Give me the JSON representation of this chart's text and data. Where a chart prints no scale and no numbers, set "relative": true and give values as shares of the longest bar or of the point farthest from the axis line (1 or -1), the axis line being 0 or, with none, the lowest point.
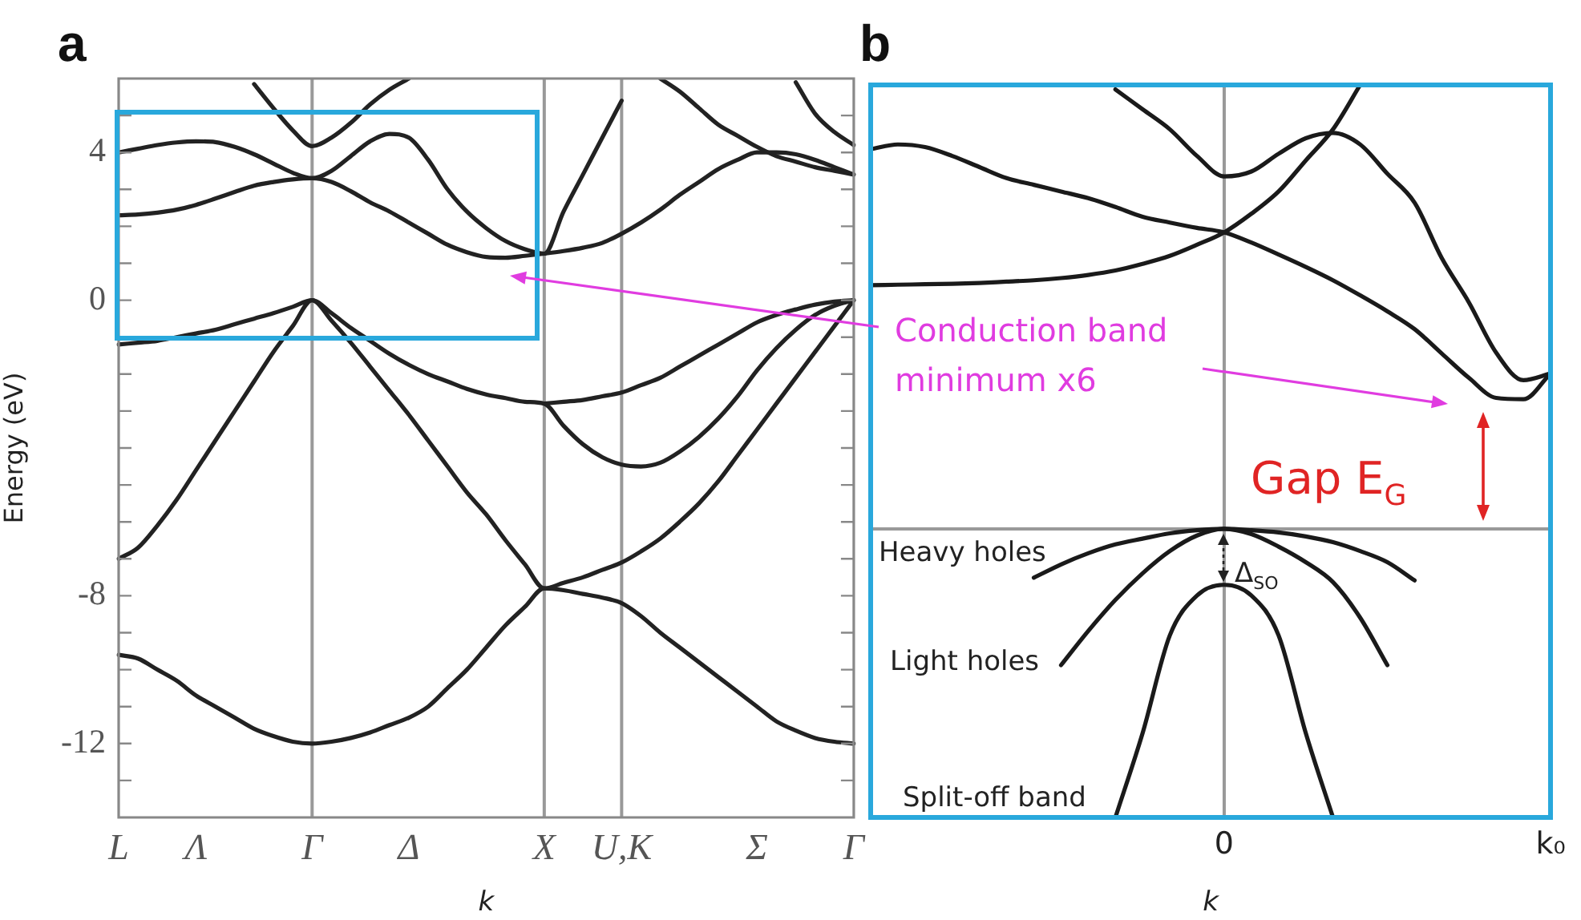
{
  "chart_data": [
    {
      "type": "line",
      "title": "a",
      "xlabel": "k",
      "ylabel": "Energy (eV)",
      "ylim": [
        -14,
        6
      ],
      "categories": [
        "L",
        null,
        null,
        null,
        "Λ",
        null,
        null,
        null,
        null,
        null,
        "Γ",
        null,
        null,
        null,
        null,
        "Δ",
        null,
        null,
        null,
        null,
        null,
        null,
        "X",
        null,
        null,
        null,
        "U,K",
        null,
        null,
        null,
        null,
        null,
        null,
        "Σ",
        null,
        null,
        null,
        null,
        "Γ"
      ],
      "yticks": [
        {
          "value": -13,
          "label": null
        },
        {
          "value": -12,
          "label": "-12"
        },
        {
          "value": -11,
          "label": null
        },
        {
          "value": -10,
          "label": null
        },
        {
          "value": -9,
          "label": null
        },
        {
          "value": -8,
          "label": "-8"
        },
        {
          "value": -7,
          "label": null
        },
        {
          "value": -6,
          "label": null
        },
        {
          "value": -5,
          "label": null
        },
        {
          "value": -4,
          "label": null
        },
        {
          "value": -3,
          "label": null
        },
        {
          "value": -2,
          "label": null
        },
        {
          "value": -1,
          "label": null
        },
        {
          "value": 0,
          "label": "0"
        },
        {
          "value": 1,
          "label": null
        },
        {
          "value": 2,
          "label": null
        },
        {
          "value": 3,
          "label": null
        },
        {
          "value": 4,
          "label": "4"
        },
        {
          "value": 5,
          "label": null
        }
      ],
      "grid": false,
      "marker": "none",
      "line_style": "solid",
      "ref_lines": [
        {
          "axis": "x",
          "value": "Γ",
          "color": "#999999"
        },
        {
          "axis": "x",
          "value": "X",
          "color": "#999999"
        },
        {
          "axis": "x",
          "value": "U,K",
          "color": "#999999"
        }
      ],
      "series": [
        {
          "color": "#222222",
          "values": [
            -9.6,
            -9.7,
            -10.0,
            -10.3,
            -10.7,
            -11.0,
            -11.3,
            -11.6,
            -11.8,
            -11.95,
            -12.0,
            -11.95,
            -11.85,
            -11.7,
            -11.5,
            -11.3,
            -11.0,
            -10.5,
            -10.0,
            -9.4,
            -8.8,
            -8.3,
            -7.8,
            -7.85,
            -7.95,
            -8.05,
            -8.2,
            -8.55,
            -9.0,
            -9.4,
            -9.8,
            -10.2,
            -10.6,
            -11.0,
            -11.4,
            -11.65,
            -11.85,
            -11.95,
            -12.0
          ]
        },
        {
          "color": "#222222",
          "values": [
            -7.0,
            -6.7,
            -6.1,
            -5.4,
            -4.6,
            -3.8,
            -3.0,
            -2.2,
            -1.4,
            -0.7,
            0,
            -0.55,
            -1.15,
            -1.8,
            -2.45,
            -3.1,
            -3.8,
            -4.5,
            -5.2,
            -5.8,
            -6.5,
            -7.15,
            -7.8,
            -7.65,
            -7.5,
            -7.3,
            -7.1,
            -6.8,
            -6.45,
            -6.0,
            -5.5,
            -4.9,
            -4.2,
            -3.5,
            -2.8,
            -2.1,
            -1.4,
            -0.7,
            0
          ]
        },
        {
          "color": "#222222",
          "values": [
            -1.2,
            -1.15,
            -1.1,
            -1.0,
            -0.9,
            -0.8,
            -0.65,
            -0.5,
            -0.35,
            -0.18,
            0,
            -0.35,
            -0.75,
            -1.1,
            -1.45,
            -1.75,
            -2.0,
            -2.2,
            -2.4,
            -2.55,
            -2.65,
            -2.75,
            -2.8,
            -3.4,
            -3.9,
            -4.25,
            -4.45,
            -4.5,
            -4.4,
            -4.1,
            -3.7,
            -3.2,
            -2.6,
            -1.9,
            -1.3,
            -0.8,
            -0.4,
            -0.15,
            0
          ]
        },
        {
          "color": "#222222",
          "values": [
            null,
            null,
            null,
            null,
            null,
            null,
            null,
            null,
            null,
            null,
            null,
            null,
            null,
            null,
            null,
            null,
            null,
            null,
            null,
            null,
            null,
            null,
            -2.8,
            -2.75,
            -2.7,
            -2.6,
            -2.5,
            -2.3,
            -2.1,
            -1.8,
            -1.5,
            -1.2,
            -0.9,
            -0.6,
            -0.4,
            -0.25,
            -0.12,
            -0.04,
            0
          ]
        },
        {
          "color": "#222222",
          "values": [
            2.3,
            2.32,
            2.37,
            2.45,
            2.58,
            2.75,
            2.93,
            3.1,
            3.2,
            3.27,
            3.3,
            3.2,
            2.95,
            2.65,
            2.4,
            2.1,
            1.8,
            1.5,
            1.3,
            1.17,
            1.15,
            1.2,
            1.26,
            1.33,
            1.42,
            1.55,
            1.8,
            2.1,
            2.45,
            2.85,
            3.2,
            3.55,
            3.8,
            4.0,
            4.0,
            3.95,
            3.8,
            3.6,
            3.4
          ]
        },
        {
          "color": "#222222",
          "values": [
            4.0,
            4.1,
            4.2,
            4.27,
            4.3,
            4.28,
            4.15,
            3.95,
            3.7,
            3.45,
            3.3,
            3.5,
            3.9,
            4.3,
            4.5,
            4.4,
            3.8,
            3.0,
            2.4,
            1.95,
            1.6,
            1.38,
            1.26,
            2.4,
            3.4,
            4.4,
            5.4,
            null,
            null,
            null,
            null,
            null,
            null,
            null,
            null,
            null,
            null,
            null,
            null
          ]
        },
        {
          "color": "#222222",
          "values": [
            null,
            null,
            null,
            null,
            null,
            null,
            null,
            5.85,
            5.2,
            4.6,
            4.17,
            4.4,
            4.8,
            5.3,
            5.7,
            6.0,
            null,
            null,
            null,
            null,
            null,
            null,
            null,
            null,
            null,
            null,
            null,
            null,
            null,
            null,
            null,
            null,
            null,
            null,
            null,
            null,
            null,
            null,
            null
          ]
        },
        {
          "color": "#222222",
          "values": [
            null,
            null,
            null,
            null,
            null,
            null,
            null,
            null,
            null,
            null,
            null,
            null,
            null,
            null,
            null,
            null,
            null,
            null,
            null,
            null,
            null,
            null,
            null,
            null,
            null,
            null,
            null,
            null,
            6.0,
            5.65,
            5.2,
            4.75,
            4.45,
            4.15,
            3.9,
            3.75,
            3.6,
            3.5,
            3.4
          ]
        },
        {
          "color": "#222222",
          "values": [
            null,
            null,
            null,
            null,
            null,
            null,
            null,
            null,
            null,
            null,
            null,
            null,
            null,
            null,
            null,
            null,
            null,
            null,
            null,
            null,
            null,
            null,
            null,
            null,
            null,
            null,
            null,
            null,
            null,
            null,
            null,
            null,
            null,
            null,
            null,
            5.9,
            5.05,
            4.55,
            4.2
          ]
        }
      ]
    },
    {
      "type": "line",
      "title": "b",
      "xlabel": "k",
      "relative": true,
      "categories": [
        null,
        null,
        null,
        null,
        null,
        null,
        null,
        null,
        null,
        null,
        null,
        null,
        null,
        "0",
        null,
        null,
        null,
        null,
        null,
        null,
        null,
        null,
        null,
        null,
        null,
        "k₀"
      ],
      "tick_labels": "x",
      "grid": false,
      "marker": "none",
      "line_style": "solid",
      "ref_lines": [
        {
          "axis": "x",
          "value": "0",
          "color": "#999999"
        },
        {
          "axis": "y",
          "value": 0,
          "color": "#999999"
        }
      ],
      "annotations": [
        "Conduction band\nminimum x6",
        "Gap E$_{G}$",
        "Δ$_{SO}$",
        "Heavy holes",
        "Light holes",
        "Split-off band"
      ],
      "series": [
        {
          "color": "#1a1a1a",
          "values": [
            0.549,
            0.55,
            0.551,
            0.552,
            0.554,
            0.557,
            0.56,
            0.565,
            0.572,
            0.582,
            0.597,
            0.615,
            0.64,
            0.668,
            0.71,
            0.76,
            0.83,
            0.9,
            1.0,
            null,
            null,
            null,
            null,
            null,
            null,
            null
          ]
        },
        {
          "color": "#1a1a1a",
          "values": [
            0.855,
            0.866,
            0.86,
            0.84,
            0.815,
            0.79,
            0.775,
            0.76,
            0.745,
            0.725,
            0.703,
            0.69,
            0.678,
            0.668,
            0.645,
            0.618,
            0.59,
            0.56,
            0.526,
            0.49,
            0.45,
            0.395,
            0.34,
            0.295,
            0.292,
            0.35
          ]
        },
        {
          "color": "#1a1a1a",
          "values": [
            null,
            null,
            null,
            null,
            null,
            null,
            null,
            null,
            null,
            0.99,
            0.945,
            0.9,
            0.84,
            0.794,
            0.805,
            0.845,
            0.88,
            0.892,
            0.866,
            0.8,
            0.735,
            0.61,
            0.51,
            0.397,
            0.335,
            0.35
          ]
        },
        {
          "color": "#1a1a1a",
          "values": [
            null,
            null,
            null,
            null,
            null,
            null,
            -0.11,
            -0.08,
            -0.055,
            -0.035,
            -0.022,
            -0.01,
            -0.003,
            0,
            -0.003,
            -0.008,
            -0.017,
            -0.03,
            -0.05,
            -0.075,
            -0.116,
            null,
            null,
            null,
            null,
            null
          ]
        },
        {
          "color": "#1a1a1a",
          "values": [
            null,
            null,
            null,
            null,
            null,
            null,
            null,
            -0.307,
            -0.23,
            -0.16,
            -0.1,
            -0.05,
            -0.015,
            0,
            -0.012,
            -0.04,
            -0.075,
            -0.12,
            -0.2,
            -0.307,
            null,
            null,
            null,
            null,
            null,
            null
          ]
        },
        {
          "color": "#1a1a1a",
          "values": [
            null,
            null,
            null,
            null,
            null,
            null,
            null,
            null,
            null,
            -0.65,
            -0.46,
            -0.24,
            -0.15,
            -0.126,
            -0.15,
            -0.24,
            -0.46,
            -0.65,
            null,
            null,
            null,
            null,
            null,
            null,
            null,
            null
          ]
        }
      ]
    }
  ]
}
